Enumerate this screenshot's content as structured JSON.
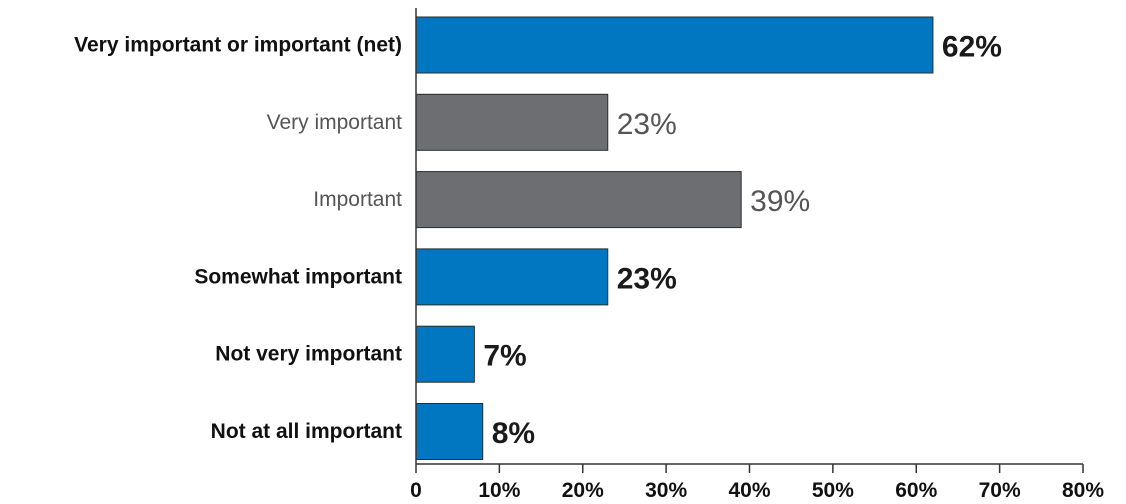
{
  "chart_data": {
    "type": "bar",
    "orientation": "horizontal",
    "categories": [
      "Very important or important (net)",
      "Very important",
      "Important",
      "Somewhat important",
      "Not very important",
      "Not at all important"
    ],
    "values": [
      62,
      23,
      39,
      23,
      7,
      8
    ],
    "value_labels": [
      "62%",
      "23%",
      "39%",
      "23%",
      "7%",
      "8%"
    ],
    "emphasis": [
      true,
      false,
      false,
      true,
      true,
      true
    ],
    "bar_colors": [
      "#0077c0",
      "#6d6e71",
      "#6d6e71",
      "#0077c0",
      "#0077c0",
      "#0077c0"
    ],
    "xlim": [
      0,
      80
    ],
    "xticks": [
      0,
      10,
      20,
      30,
      40,
      50,
      60,
      70,
      80
    ],
    "xtick_labels": [
      "0",
      "10%",
      "20%",
      "30%",
      "40%",
      "50%",
      "60%",
      "70%",
      "80%"
    ],
    "grid": false,
    "legend": "none"
  }
}
